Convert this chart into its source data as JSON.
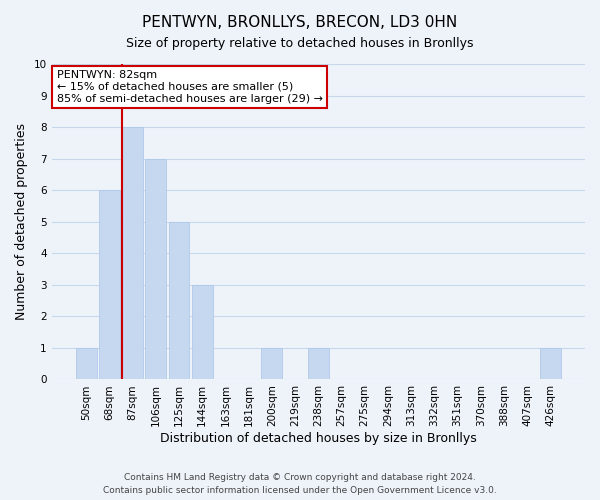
{
  "title": "PENTWYN, BRONLLYS, BRECON, LD3 0HN",
  "subtitle": "Size of property relative to detached houses in Bronllys",
  "xlabel": "Distribution of detached houses by size in Bronllys",
  "ylabel": "Number of detached properties",
  "bin_labels": [
    "50sqm",
    "68sqm",
    "87sqm",
    "106sqm",
    "125sqm",
    "144sqm",
    "163sqm",
    "181sqm",
    "200sqm",
    "219sqm",
    "238sqm",
    "257sqm",
    "275sqm",
    "294sqm",
    "313sqm",
    "332sqm",
    "351sqm",
    "370sqm",
    "388sqm",
    "407sqm",
    "426sqm"
  ],
  "bar_values": [
    1,
    6,
    8,
    7,
    5,
    3,
    0,
    0,
    1,
    0,
    1,
    0,
    0,
    0,
    0,
    0,
    0,
    0,
    0,
    0,
    1
  ],
  "bar_color": "#c5d8f0",
  "bar_edge_color": "#a8c4e8",
  "ylim": [
    0,
    10
  ],
  "yticks": [
    0,
    1,
    2,
    3,
    4,
    5,
    6,
    7,
    8,
    9,
    10
  ],
  "property_line_bin_index": 2,
  "annotation_title": "PENTWYN: 82sqm",
  "annotation_line1": "← 15% of detached houses are smaller (5)",
  "annotation_line2": "85% of semi-detached houses are larger (29) →",
  "annotation_box_facecolor": "#ffffff",
  "annotation_border_color": "#cc0000",
  "footer_line1": "Contains HM Land Registry data © Crown copyright and database right 2024.",
  "footer_line2": "Contains public sector information licensed under the Open Government Licence v3.0.",
  "grid_color": "#c8d8ec",
  "background_color": "#eef3fa",
  "title_fontsize": 11,
  "subtitle_fontsize": 9,
  "axis_label_fontsize": 9,
  "tick_fontsize": 7.5,
  "footer_fontsize": 6.5,
  "annotation_fontsize": 8
}
